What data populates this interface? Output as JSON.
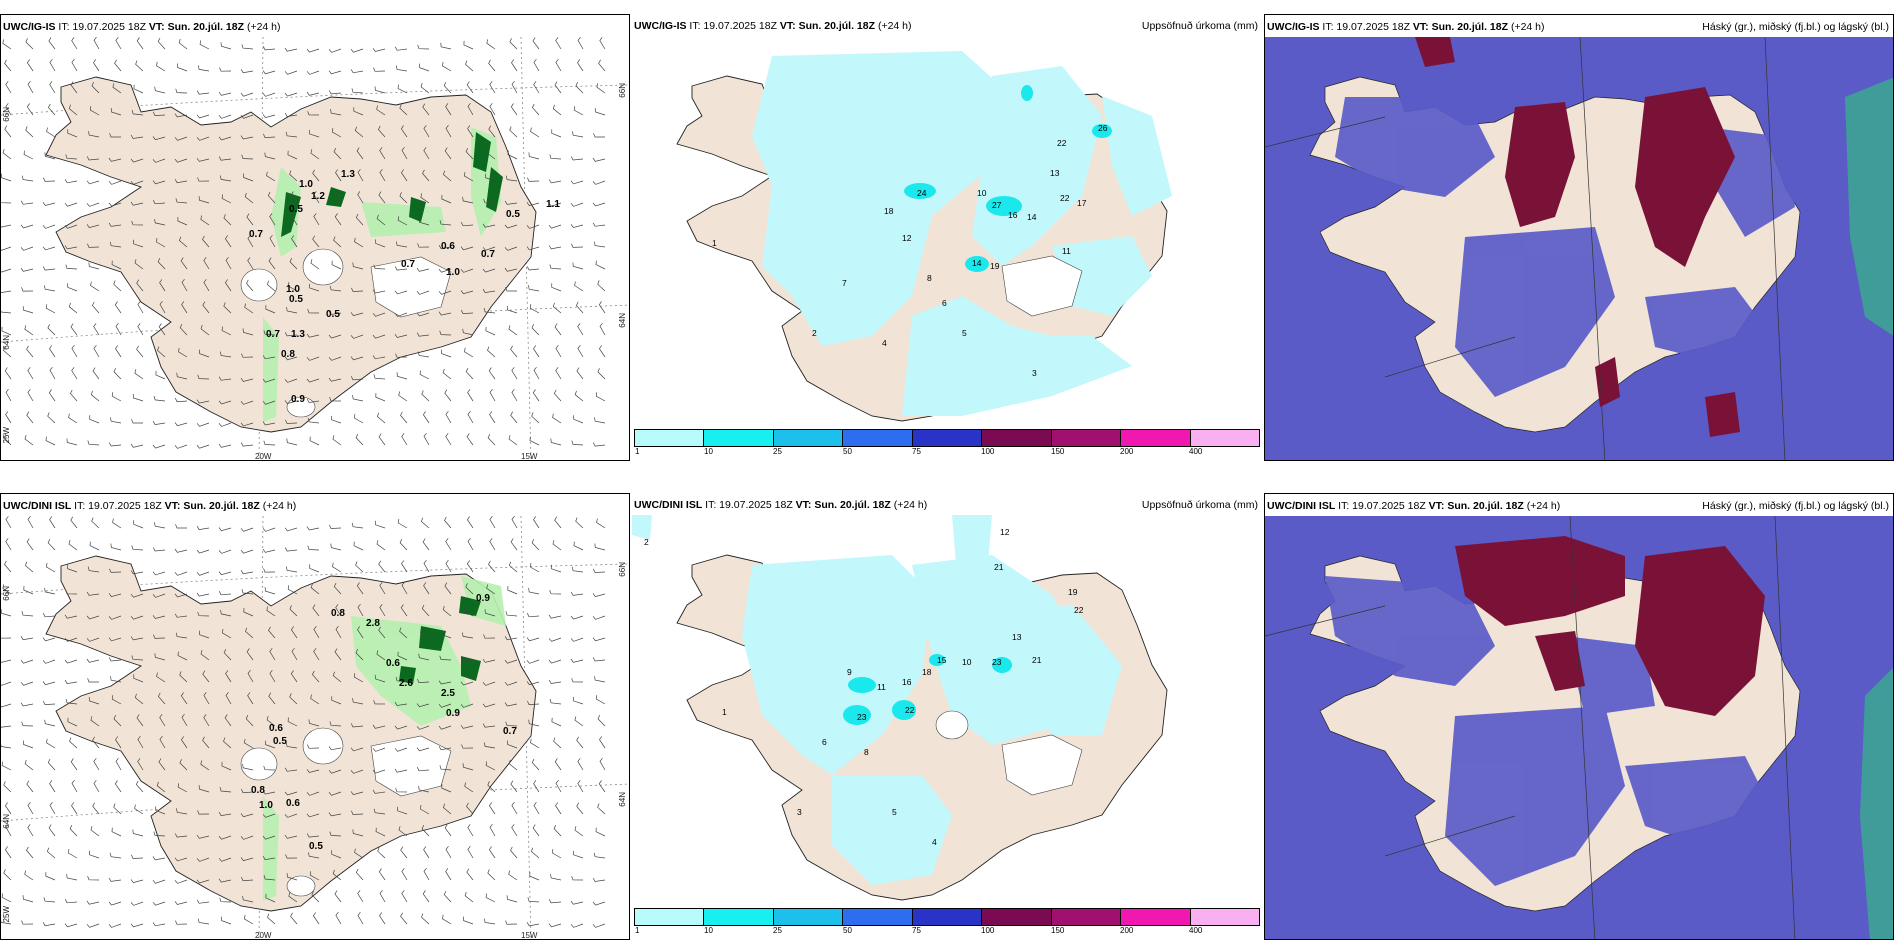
{
  "panels": [
    {
      "model": "UWC/IG-IS",
      "it": "IT: 19.07.2025 18Z",
      "vt": "VT: Sun. 20.júl. 18Z",
      "lead": "(+24 h)",
      "subtitle": "",
      "grid_labels": {
        "lat66": "66N",
        "lat64": "64N",
        "lon25": "25W",
        "lon20": "20W",
        "lon15": "15W"
      },
      "values": [
        "1.0",
        "0.5",
        "1.2",
        "1.3",
        "0.7",
        "1.1",
        "0.5",
        "1.0",
        "0.7",
        "1.0",
        "0.5",
        "0.7",
        "0.5",
        "0.8",
        "0.9",
        "0.6",
        "1.3",
        "0.7"
      ]
    },
    {
      "model": "UWC/IG-IS",
      "it": "IT: 19.07.2025 18Z",
      "vt": "VT: Sun. 20.júl. 18Z",
      "lead": "(+24 h)",
      "subtitle": "Uppsöfnuð úrkoma (mm)",
      "values": [
        "26",
        "22",
        "24",
        "18",
        "27",
        "16",
        "14",
        "13",
        "22",
        "17",
        "11",
        "14",
        "19",
        "10",
        "12",
        "8",
        "7",
        "6",
        "5",
        "4",
        "3",
        "2",
        "1"
      ]
    },
    {
      "model": "UWC/IG-IS",
      "it": "IT: 19.07.2025 18Z",
      "vt": "VT: Sun. 20.júl. 18Z",
      "lead": "(+24 h)",
      "subtitle": "Háský (gr.), miðský (fj.bl.) og lágský (bl.)"
    },
    {
      "model": "UWC/DINI ISL",
      "it": "IT: 19.07.2025 18Z",
      "vt": "VT: Sun. 20.júl. 18Z",
      "lead": "(+24 h)",
      "subtitle": "",
      "grid_labels": {
        "lat66": "66N",
        "lat64": "64N",
        "lon25": "25W",
        "lon20": "20W",
        "lon15": "15W"
      },
      "values": [
        "0.8",
        "2.8",
        "0.6",
        "2.6",
        "2.5",
        "0.9",
        "0.9",
        "0.7",
        "0.6",
        "0.5",
        "0.8",
        "1.0",
        "0.6",
        "0.5"
      ]
    },
    {
      "model": "UWC/DINI ISL",
      "it": "IT: 19.07.2025 18Z",
      "vt": "VT: Sun. 20.júl. 18Z",
      "lead": "(+24 h)",
      "subtitle": "Uppsöfnuð úrkoma (mm)",
      "values": [
        "12",
        "21",
        "19",
        "22",
        "18",
        "16",
        "13",
        "23",
        "21",
        "15",
        "23",
        "22",
        "11",
        "10",
        "9",
        "8",
        "6",
        "5",
        "4",
        "3",
        "2",
        "1"
      ]
    },
    {
      "model": "UWC/DINI ISL",
      "it": "IT: 19.07.2025 18Z",
      "vt": "VT: Sun. 20.júl. 18Z",
      "lead": "(+24 h)",
      "subtitle": "Háský (gr.), miðský (fj.bl.) og lágský (bl.)"
    }
  ],
  "colorbar": {
    "ticks": [
      "1",
      "10",
      "25",
      "50",
      "75",
      "100",
      "150",
      "200",
      "400"
    ],
    "colors": [
      "#b8fbfb",
      "#18f0f0",
      "#1cc0ea",
      "#2d6df0",
      "#2a33c8",
      "#7a0a52",
      "#a0106e",
      "#f018b0",
      "#f8b0f0"
    ]
  },
  "colors": {
    "land": "#f1e4d6",
    "sea": "#ffffff",
    "precip_light": "#c2f7fb",
    "precip_mid": "#1ae8ec",
    "green_light": "#b6f0b0",
    "green_dark": "#0c6a20",
    "cloud_low": "#5b5bc8",
    "cloud_high": "#7a1238",
    "cloud_fill_white": "#ffffff",
    "green_cloud": "#3ca890"
  }
}
